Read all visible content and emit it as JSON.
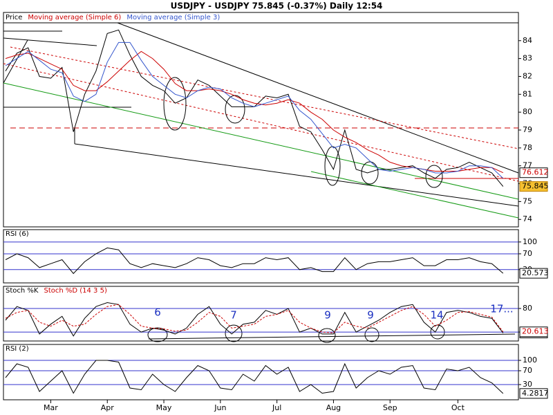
{
  "title": "USDJPY - USDJPY   75.845 (-0.37%)   Daily  12:54",
  "chart_data": [
    {
      "type": "line",
      "series": [
        {
          "name": "Price",
          "color": "#000000",
          "values": [
            82.3,
            83.3,
            83.6,
            82.0,
            81.9,
            82.5,
            78.9,
            81.0,
            82.3,
            84.4,
            84.6,
            83.2,
            82.0,
            81.5,
            81.2,
            80.5,
            80.8,
            81.8,
            81.5,
            80.9,
            80.3,
            80.3,
            80.3,
            80.9,
            80.8,
            81.0,
            79.2,
            78.9,
            77.9,
            76.8,
            79.0,
            76.8,
            76.6,
            76.8,
            76.8,
            76.9,
            77.0,
            76.6,
            76.3,
            76.8,
            76.9,
            77.2,
            76.9,
            76.6,
            75.845
          ]
        },
        {
          "name": "Moving average (Simple 6)",
          "color": "#cc0000",
          "values": [
            83.0,
            83.2,
            83.3,
            83.0,
            82.7,
            82.4,
            81.5,
            81.2,
            81.2,
            81.7,
            82.3,
            82.9,
            83.4,
            83.0,
            82.4,
            81.6,
            81.2,
            81.2,
            81.3,
            81.2,
            81.0,
            80.7,
            80.5,
            80.4,
            80.5,
            80.7,
            80.5,
            80.0,
            79.6,
            79.0,
            78.6,
            78.3,
            77.9,
            77.6,
            77.2,
            77.0,
            76.9,
            76.8,
            76.7,
            76.7,
            76.7,
            76.8,
            76.9,
            76.9,
            76.612
          ]
        },
        {
          "name": "Moving average (Simple 3)",
          "color": "#3355cc",
          "values": [
            82.6,
            83.0,
            83.4,
            82.9,
            82.4,
            82.2,
            80.9,
            80.6,
            81.0,
            82.8,
            83.9,
            83.9,
            82.9,
            82.0,
            81.5,
            81.0,
            80.8,
            81.2,
            81.4,
            81.3,
            80.8,
            80.5,
            80.3,
            80.5,
            80.7,
            80.9,
            80.1,
            79.6,
            78.8,
            78.0,
            78.2,
            78.0,
            77.4,
            76.8,
            76.7,
            76.8,
            76.9,
            76.8,
            76.6,
            76.6,
            76.7,
            77.0,
            77.0,
            76.9,
            76.3
          ]
        }
      ],
      "ylim": [
        73.7,
        85.5
      ],
      "yticks": [
        74,
        75,
        76,
        77,
        78,
        79,
        80,
        81,
        82,
        83,
        84
      ]
    },
    {
      "type": "line",
      "series": [
        {
          "name": "RSI (6)",
          "color": "#000000",
          "values": [
            55,
            70,
            60,
            35,
            45,
            55,
            20,
            50,
            70,
            85,
            80,
            45,
            35,
            45,
            40,
            35,
            45,
            60,
            55,
            40,
            35,
            45,
            45,
            60,
            55,
            60,
            30,
            35,
            25,
            25,
            60,
            30,
            45,
            50,
            50,
            55,
            60,
            40,
            40,
            55,
            55,
            60,
            50,
            45,
            20.573
          ]
        }
      ],
      "ylim": [
        -2,
        112
      ],
      "yticks": [
        30,
        70,
        100
      ],
      "grid_color": "#3333cc"
    },
    {
      "type": "line",
      "series": [
        {
          "name": "Stoch %K",
          "color": "#000000",
          "values": [
            50,
            85,
            75,
            15,
            40,
            60,
            10,
            55,
            85,
            95,
            90,
            40,
            20,
            30,
            25,
            15,
            30,
            65,
            85,
            40,
            15,
            40,
            45,
            75,
            65,
            80,
            20,
            30,
            15,
            15,
            70,
            20,
            35,
            50,
            70,
            85,
            90,
            45,
            20,
            70,
            75,
            70,
            60,
            55,
            17.577
          ]
        },
        {
          "name": "Stoch %D (14 3 5)",
          "color": "#cc0000",
          "values": [
            55,
            70,
            75,
            45,
            35,
            50,
            35,
            40,
            65,
            85,
            90,
            65,
            35,
            30,
            28,
            22,
            25,
            45,
            70,
            60,
            30,
            35,
            40,
            60,
            65,
            75,
            45,
            30,
            20,
            18,
            45,
            35,
            30,
            45,
            60,
            75,
            85,
            65,
            35,
            50,
            70,
            72,
            65,
            58,
            20.613
          ]
        }
      ],
      "ylim": [
        -1,
        117
      ],
      "yticks": [
        20,
        80
      ],
      "grid_color": "#3333cc",
      "annotations": [
        "6",
        "7",
        "9",
        "9",
        "14",
        "17..."
      ]
    },
    {
      "type": "line",
      "categories": [
        null,
        null,
        null,
        null,
        "Mar",
        null,
        null,
        null,
        null,
        "Apr",
        null,
        null,
        null,
        null,
        "May",
        null,
        null,
        null,
        null,
        "Jun",
        null,
        null,
        null,
        null,
        "Jul",
        null,
        null,
        null,
        null,
        "Aug",
        null,
        null,
        null,
        null,
        "Sep",
        null,
        null,
        null,
        null,
        null,
        "Oct",
        null,
        null,
        null,
        null
      ],
      "series": [
        {
          "name": "RSI (2)",
          "color": "#000000",
          "values": [
            50,
            90,
            80,
            10,
            40,
            70,
            5,
            60,
            100,
            100,
            95,
            20,
            15,
            60,
            30,
            10,
            50,
            85,
            70,
            20,
            15,
            60,
            40,
            85,
            60,
            80,
            10,
            30,
            5,
            10,
            90,
            20,
            50,
            70,
            60,
            80,
            85,
            20,
            15,
            75,
            70,
            80,
            50,
            35,
            4.2817
          ]
        }
      ],
      "ylim": [
        -12,
        122
      ],
      "yticks": [
        30,
        70,
        100
      ],
      "grid_color": "#3333cc"
    }
  ]
}
